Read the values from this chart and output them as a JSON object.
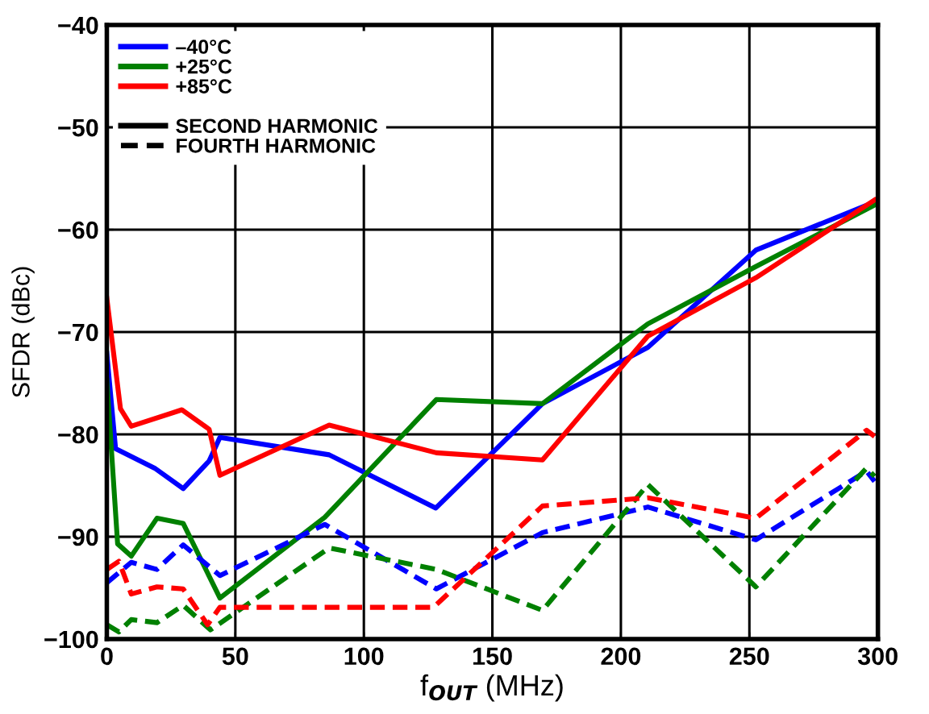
{
  "chart_data": {
    "type": "line",
    "xlabel": "f$_{OUT}$ (MHz)",
    "ylabel": "SFDR (dBc)",
    "xlim": [
      0,
      300
    ],
    "xticks": [
      0,
      50,
      100,
      150,
      200,
      250,
      300
    ],
    "ylim": [
      -100,
      -40
    ],
    "yticks": [
      -100,
      -90,
      -80,
      -70,
      -60,
      -50,
      -40
    ],
    "grid": true,
    "legend": "top left",
    "marker": "none",
    "annotations": [
      "SECOND HARMONIC",
      "FOURTH HARMONIC"
    ],
    "series": [
      {
        "name": "–40°C",
        "color": "#0000ff",
        "line_style": "solid",
        "x": [
          0,
          3.4,
          18.6,
          29.7,
          39.8,
          44,
          86.5,
          128,
          169.5,
          210.5,
          252.5,
          298.7
        ],
        "values": [
          -72.1,
          -81.4,
          -83.3,
          -85.3,
          -82.6,
          -80.3,
          -82.0,
          -87.2,
          -77.0,
          -71.5,
          -62.0,
          -57.3
        ]
      },
      {
        "name": "+25°C",
        "color": "#008000",
        "line_style": "solid",
        "x": [
          0,
          4.2,
          9.5,
          19.5,
          29.7,
          44,
          84.8,
          128.2,
          169.5,
          210.5,
          252.5,
          298.7
        ],
        "values": [
          -74.7,
          -90.7,
          -91.9,
          -88.2,
          -88.7,
          -96.0,
          -88.1,
          -76.6,
          -77.0,
          -69.2,
          -63.6,
          -57.6
        ]
      },
      {
        "name": "+85°C",
        "color": "#ff0000",
        "line_style": "solid",
        "x": [
          0,
          5.3,
          9.5,
          29.2,
          39.8,
          44,
          86.5,
          128.2,
          169.5,
          210.5,
          252.5,
          298.7
        ],
        "values": [
          -66.7,
          -77.5,
          -79.2,
          -77.6,
          -79.5,
          -84.0,
          -79.1,
          -81.8,
          -82.5,
          -70.4,
          -64.7,
          -57.1
        ]
      },
      {
        "color": "#0000ff",
        "line_style": "dashed",
        "x": [
          0,
          9.5,
          19.5,
          29.7,
          44,
          84.8,
          128.2,
          169.5,
          210.5,
          252.5,
          295.6,
          298.7
        ],
        "values": [
          -94.5,
          -92.5,
          -93.2,
          -90.8,
          -93.8,
          -88.8,
          -95.1,
          -89.6,
          -87.1,
          -90.3,
          -83.6,
          -84.6
        ]
      },
      {
        "color": "#008000",
        "line_style": "dashed",
        "x": [
          0,
          4.7,
          9.5,
          19.5,
          29.7,
          40.3,
          86.5,
          128.2,
          169.5,
          210.5,
          252.5,
          295.6,
          298.7
        ],
        "values": [
          -98.6,
          -99.3,
          -98.1,
          -98.4,
          -96.7,
          -99.1,
          -91.1,
          -93.2,
          -97.2,
          -84.9,
          -94.9,
          -83.3,
          -84.1
        ]
      },
      {
        "color": "#ff0000",
        "line_style": "dashed",
        "x": [
          0,
          4.7,
          9.5,
          19.5,
          29.7,
          39.2,
          44,
          127.1,
          169.5,
          210.5,
          252.5,
          295.6,
          298.7
        ],
        "values": [
          -93.2,
          -92.4,
          -95.6,
          -94.9,
          -95.1,
          -98.6,
          -96.9,
          -96.9,
          -87.0,
          -86.2,
          -88.2,
          -79.6,
          -80.2
        ]
      }
    ]
  }
}
